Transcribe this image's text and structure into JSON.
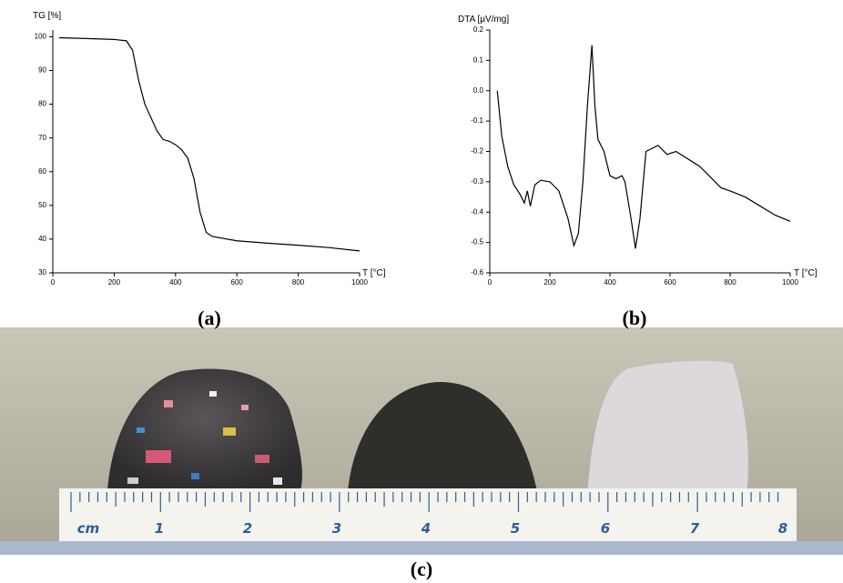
{
  "chart_data": [
    {
      "type": "line",
      "ylabel": "TG [%]",
      "xlabel": "T [°C]",
      "x": [
        20,
        100,
        200,
        240,
        260,
        280,
        300,
        320,
        340,
        360,
        380,
        400,
        420,
        440,
        460,
        480,
        500,
        520,
        600,
        700,
        800,
        900,
        1000
      ],
      "values": [
        99.7,
        99.5,
        99.2,
        98.8,
        96,
        87,
        80,
        76,
        72,
        69.5,
        69,
        68,
        66.5,
        64,
        58,
        48,
        42,
        40.8,
        39.5,
        38.8,
        38.2,
        37.5,
        36.5
      ],
      "color": "#000000",
      "xlim": [
        0,
        1000
      ],
      "xticks": [
        0,
        200,
        400,
        600,
        800,
        1000
      ],
      "ylim": [
        30,
        102
      ],
      "yticks": [
        30,
        40,
        50,
        60,
        70,
        80,
        90,
        100
      ]
    },
    {
      "type": "line",
      "ylabel": "DTA [µV/mg]",
      "xlabel": "T [°C]",
      "x": [
        25,
        40,
        60,
        80,
        100,
        115,
        125,
        135,
        150,
        170,
        200,
        230,
        260,
        280,
        295,
        310,
        325,
        340,
        350,
        360,
        380,
        400,
        420,
        440,
        450,
        470,
        485,
        500,
        520,
        560,
        590,
        620,
        700,
        770,
        800,
        850,
        900,
        950,
        1000
      ],
      "values": [
        0.0,
        -0.15,
        -0.25,
        -0.31,
        -0.34,
        -0.37,
        -0.33,
        -0.38,
        -0.31,
        -0.295,
        -0.3,
        -0.33,
        -0.42,
        -0.51,
        -0.47,
        -0.3,
        -0.05,
        0.15,
        -0.05,
        -0.16,
        -0.2,
        -0.28,
        -0.29,
        -0.28,
        -0.3,
        -0.42,
        -0.52,
        -0.42,
        -0.2,
        -0.18,
        -0.21,
        -0.2,
        -0.25,
        -0.32,
        -0.33,
        -0.35,
        -0.38,
        -0.41,
        -0.43
      ],
      "color": "#000000",
      "xlim": [
        0,
        1000
      ],
      "xticks": [
        0,
        200,
        400,
        600,
        800,
        1000
      ],
      "ylim": [
        -0.6,
        0.2
      ],
      "yticks": [
        -0.6,
        -0.5,
        -0.4,
        -0.3,
        -0.2,
        -0.1,
        {
          "value": 0,
          "label": "0.0"
        },
        0.1,
        0.2
      ]
    }
  ],
  "captions": [
    "(a)",
    "(b)",
    "(c)"
  ],
  "photo": {
    "ruler_labels": [
      "cm",
      "1",
      "2",
      "3",
      "4",
      "5",
      "6",
      "7",
      "8"
    ]
  }
}
